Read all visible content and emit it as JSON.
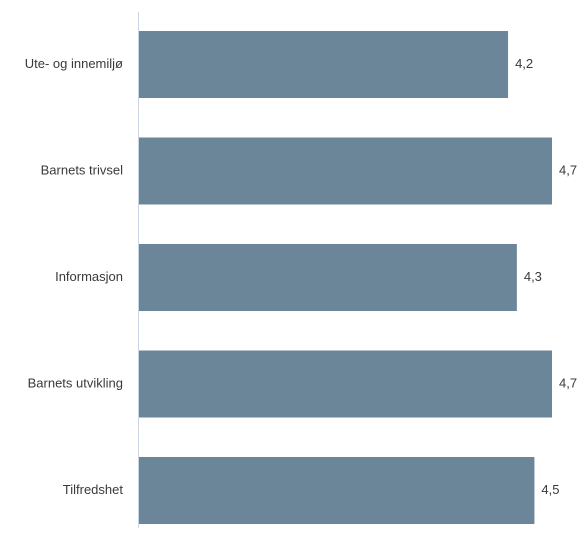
{
  "chart_data": {
    "type": "bar",
    "orientation": "horizontal",
    "title": "",
    "xlabel": "",
    "ylabel": "",
    "categories": [
      "Ute- og innemiljø",
      "Barnets trivsel",
      "Informasjon",
      "Barnets utvikling",
      "Tilfredshet"
    ],
    "values": [
      4.2,
      4.7,
      4.3,
      4.7,
      4.5
    ],
    "value_labels": [
      "4,2",
      "4,7",
      "4,3",
      "4,7",
      "4,5"
    ],
    "xlim": [
      0,
      4.7
    ],
    "grid": false,
    "legend": "none",
    "colors": {
      "bar": "#6b8599",
      "axis": "#c9d6e3",
      "text": "#3a3a3a"
    }
  }
}
